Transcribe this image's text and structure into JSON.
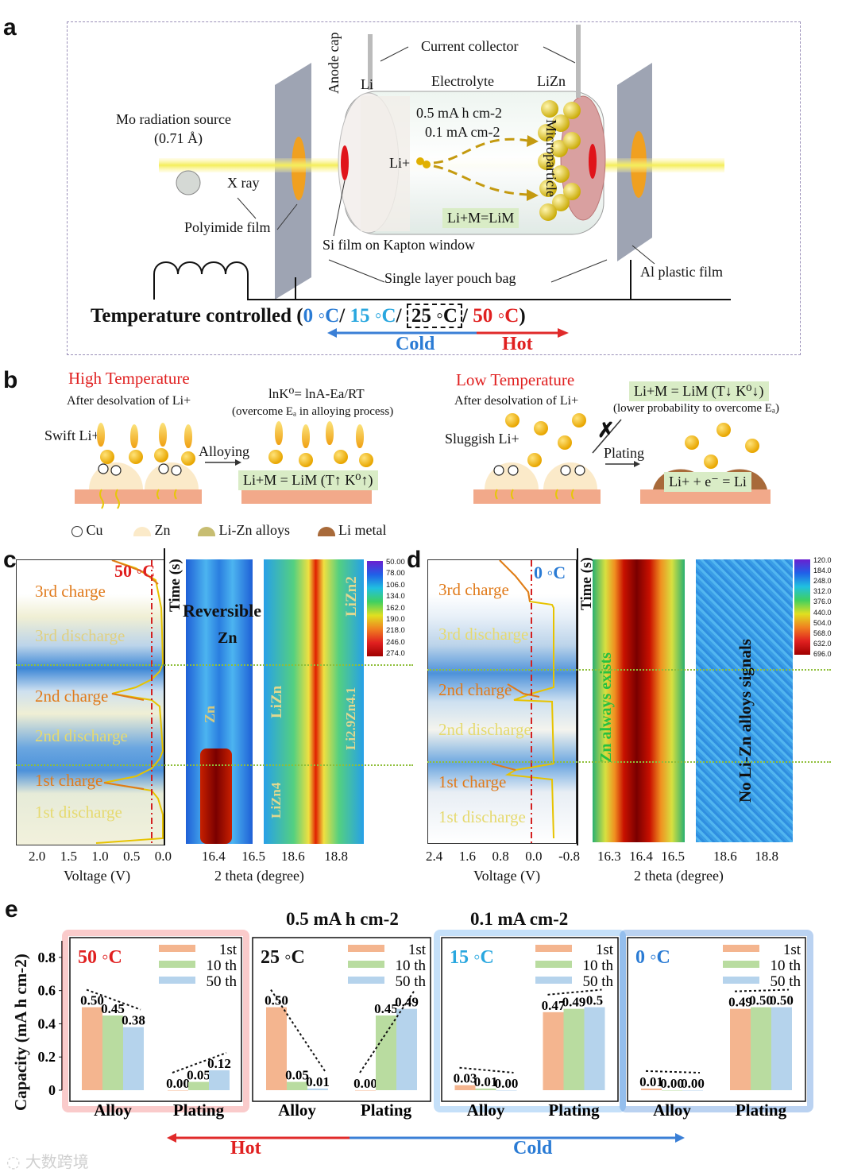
{
  "panel_a": {
    "letter": "a",
    "labels": {
      "current_collector": "Current collector",
      "anode_cap": "Anode cap",
      "li": "Li",
      "electrolyte": "Electrolyte",
      "lizn": "LiZn",
      "capacity": "0.5 mA h cm-2",
      "current": "0.1 mA cm-2",
      "li_plus": "Li+",
      "microparticle": "Microparticle",
      "reaction": "Li+M=LiM",
      "mo_source": "Mo radiation source",
      "wavelength": "(0.71 Å)",
      "xray": "X ray",
      "polyimide": "Polyimide film",
      "si_film": "Si film on Kapton window",
      "pouch": "Single layer pouch bag",
      "al_film": "Al plastic film",
      "temp_prefix": "Temperature controlled (",
      "t0": "0 ◦C",
      "t15": "15 ◦C",
      "t25": "25 ◦C",
      "t50": "50 ◦C",
      "sep": "/ ",
      "close": ")",
      "cold": "Cold",
      "hot": "Hot"
    }
  },
  "panel_b": {
    "letter": "b",
    "high_title": "High Temperature",
    "high_sub": "After desolvation of Li+",
    "swift": "Swift Li+",
    "alloying": "Alloying",
    "eq_ln": "lnK⁰= lnA-Ea/RT",
    "eq_ln_sub": "(overcome Eₐ in alloying process)",
    "eq_alloy_high": "Li+M = LiM (T↑ K⁰↑)",
    "low_title": "Low Temperature",
    "low_sub": "After desolvation of Li+",
    "sluggish": "Sluggish Li+",
    "plating": "Plating",
    "eq_alloy_low": "Li+M = LiM (T↓ K⁰↓)",
    "eq_low_sub": "(lower probability to overcome Eₐ)",
    "eq_plating": "Li+ + e⁻ = Li",
    "legend": [
      "Cu",
      "Zn",
      "Li-Zn alloys",
      "Li metal"
    ]
  },
  "panel_c": {
    "letter": "c",
    "temp": "50 ◦C",
    "time_label": "Time (s)",
    "steps": [
      "3rd charge",
      "3rd discharge",
      "2nd charge",
      "2nd discharge",
      "1st charge",
      "1st discharge"
    ],
    "voltage_ticks": [
      "2.0",
      "1.5",
      "1.0",
      "0.5",
      "0.0"
    ],
    "voltage_label": "Voltage (V)",
    "theta_ticks_1": [
      "16.4",
      "16.5"
    ],
    "theta_ticks_2": [
      "18.6",
      "18.8"
    ],
    "theta_label": "2 theta (degree)",
    "annotations": [
      "Reversible",
      "Zn",
      "Zn",
      "LiZn",
      "LiZn2",
      "Li2.9Zn4.1",
      "LiZn4"
    ],
    "colorbar": [
      "50.00",
      "78.00",
      "106.0",
      "134.0",
      "162.0",
      "190.0",
      "218.0",
      "246.0",
      "274.0"
    ]
  },
  "panel_d": {
    "letter": "d",
    "temp": "0 ◦C",
    "time_label": "Time (s)",
    "steps": [
      "3rd charge",
      "3rd discharge",
      "2nd charge",
      "2nd discharge",
      "1st charge",
      "1st discharge"
    ],
    "voltage_ticks": [
      "2.4",
      "1.6",
      "0.8",
      "0.0",
      "-0.8"
    ],
    "voltage_label": "Voltage (V)",
    "theta_ticks_1": [
      "16.3",
      "16.4",
      "16.5"
    ],
    "theta_ticks_2": [
      "18.6",
      "18.8"
    ],
    "theta_label": "2 theta (degree)",
    "annotations": [
      "Zn always exists",
      "No Li-Zn alloys signals"
    ],
    "colorbar": [
      "120.0",
      "184.0",
      "248.0",
      "312.0",
      "376.0",
      "440.0",
      "504.0",
      "568.0",
      "632.0",
      "696.0"
    ]
  },
  "panel_e": {
    "letter": "e",
    "header_capacity": "0.5 mA h cm-2",
    "header_current": "0.1 mA cm-2",
    "hot": "Hot",
    "cold": "Cold",
    "legend": [
      "1st",
      "10 th",
      "50 th"
    ],
    "colors": {
      "first": "#f4b58f",
      "tenth": "#b9dca0",
      "fiftieth": "#b5d3ec"
    },
    "chart_data": {
      "type": "bar",
      "ylabel": "Capacity (mA h cm-2)",
      "ylim": [
        0,
        0.9
      ],
      "yticks": [
        "0",
        "0.2",
        "0.4",
        "0.6",
        "0.8"
      ],
      "categories": [
        "Alloy",
        "Plating"
      ],
      "panels": [
        {
          "temp": "50 ◦C",
          "series": [
            {
              "name": "1st",
              "values": [
                0.5,
                0.0
              ]
            },
            {
              "name": "10 th",
              "values": [
                0.45,
                0.05
              ]
            },
            {
              "name": "50 th",
              "values": [
                0.38,
                0.12
              ]
            }
          ],
          "labels": [
            [
              "0.50",
              "0.45",
              "0.38"
            ],
            [
              "0.00",
              "0.05",
              "0.12"
            ]
          ]
        },
        {
          "temp": "25 ◦C",
          "series": [
            {
              "name": "1st",
              "values": [
                0.5,
                0.0
              ]
            },
            {
              "name": "10 th",
              "values": [
                0.05,
                0.45
              ]
            },
            {
              "name": "50 th",
              "values": [
                0.01,
                0.49
              ]
            }
          ],
          "labels": [
            [
              "0.50",
              "0.05",
              "0.01"
            ],
            [
              "0.00",
              "0.45",
              "0.49"
            ]
          ]
        },
        {
          "temp": "15 ◦C",
          "series": [
            {
              "name": "1st",
              "values": [
                0.03,
                0.47
              ]
            },
            {
              "name": "10 th",
              "values": [
                0.01,
                0.49
              ]
            },
            {
              "name": "50 th",
              "values": [
                0.0,
                0.5
              ]
            }
          ],
          "labels": [
            [
              "0.03",
              "0.01",
              "0.00"
            ],
            [
              "0.47",
              "0.49",
              "0.5"
            ]
          ]
        },
        {
          "temp": "0 ◦C",
          "series": [
            {
              "name": "1st",
              "values": [
                0.01,
                0.49
              ]
            },
            {
              "name": "10 th",
              "values": [
                0.0,
                0.5
              ]
            },
            {
              "name": "50 th",
              "values": [
                0.0,
                0.5
              ]
            }
          ],
          "labels": [
            [
              "0.01",
              "0.00",
              "0.00"
            ],
            [
              "0.49",
              "0.50",
              "0.50"
            ]
          ]
        }
      ]
    }
  },
  "watermark": "大数跨境"
}
